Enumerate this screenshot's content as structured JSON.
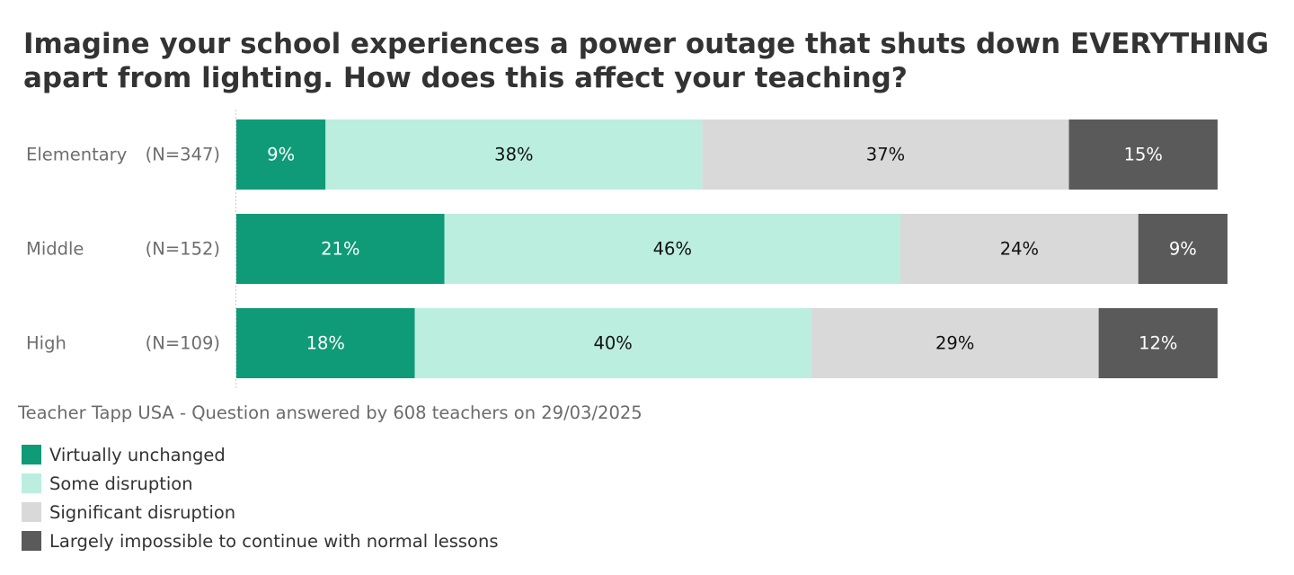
{
  "chart_data": {
    "type": "bar",
    "orientation": "horizontal",
    "stacked": true,
    "normalized": true,
    "title": "Imagine your school experiences a power outage that shuts down EVERYTHING apart from lighting. How does this affect your teaching?",
    "source": "Teacher Tapp USA - Question answered by 608 teachers on 29/03/2025",
    "categories": [
      "Elementary",
      "Middle",
      "High"
    ],
    "category_counts": [
      "(N=347)",
      "(N=152)",
      "(N=109)"
    ],
    "unit": "%",
    "xlim": [
      0,
      100
    ],
    "legend_position": "bottom-left",
    "grid": false,
    "series": [
      {
        "name": "Virtually unchanged",
        "color": "#0f9b77",
        "label_color": "#ffffff",
        "values": [
          9,
          21,
          18
        ]
      },
      {
        "name": "Some disruption",
        "color": "#bbeedf",
        "label_color": "#111111",
        "values": [
          38,
          46,
          40
        ]
      },
      {
        "name": "Significant disruption",
        "color": "#d9d9d9",
        "label_color": "#111111",
        "values": [
          37,
          24,
          29
        ]
      },
      {
        "name": "Largely impossible to continue with normal lessons",
        "color": "#5a5a5a",
        "label_color": "#ffffff",
        "values": [
          15,
          9,
          12
        ]
      }
    ]
  }
}
